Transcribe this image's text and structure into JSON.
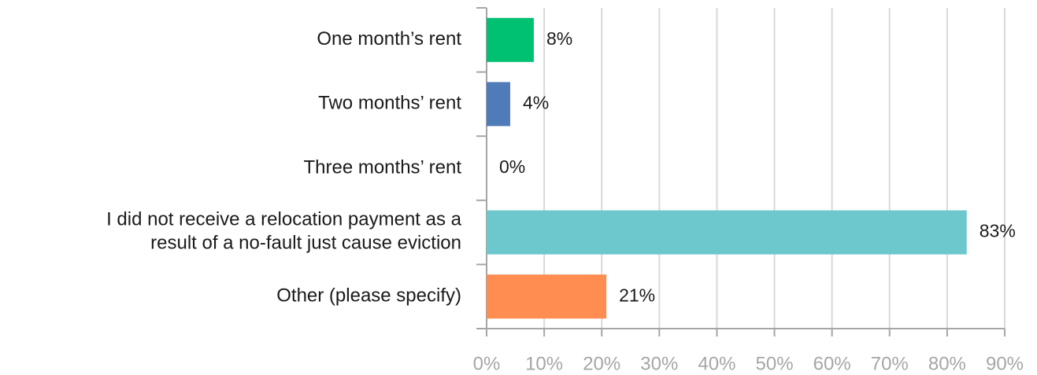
{
  "chart_data": {
    "type": "bar",
    "orientation": "horizontal",
    "categories": [
      "One month’s rent",
      "Two months’ rent",
      "Three months’ rent",
      "I did not receive a relocation payment as a\nresult of a no-fault just cause eviction",
      "Other (please specify)"
    ],
    "values": [
      8.2,
      4.1,
      0,
      83.4,
      20.8
    ],
    "value_labels": [
      "8%",
      "4%",
      "0%",
      "83%",
      "21%"
    ],
    "colors": [
      "#00c072",
      "#4f7cb9",
      "#9e9e9e",
      "#6cc8cc",
      "#ff8c50"
    ],
    "xlim": [
      0,
      90
    ],
    "xticks": [
      {
        "value": 0,
        "label": "0%"
      },
      {
        "value": 10,
        "label": "10%"
      },
      {
        "value": 20,
        "label": "20%"
      },
      {
        "value": 30,
        "label": "30%"
      },
      {
        "value": 40,
        "label": "40%"
      },
      {
        "value": 50,
        "label": "50%"
      },
      {
        "value": 60,
        "label": "60%"
      },
      {
        "value": 70,
        "label": "70%"
      },
      {
        "value": 80,
        "label": "80%"
      },
      {
        "value": 90,
        "label": "90%"
      }
    ],
    "grid": true
  }
}
